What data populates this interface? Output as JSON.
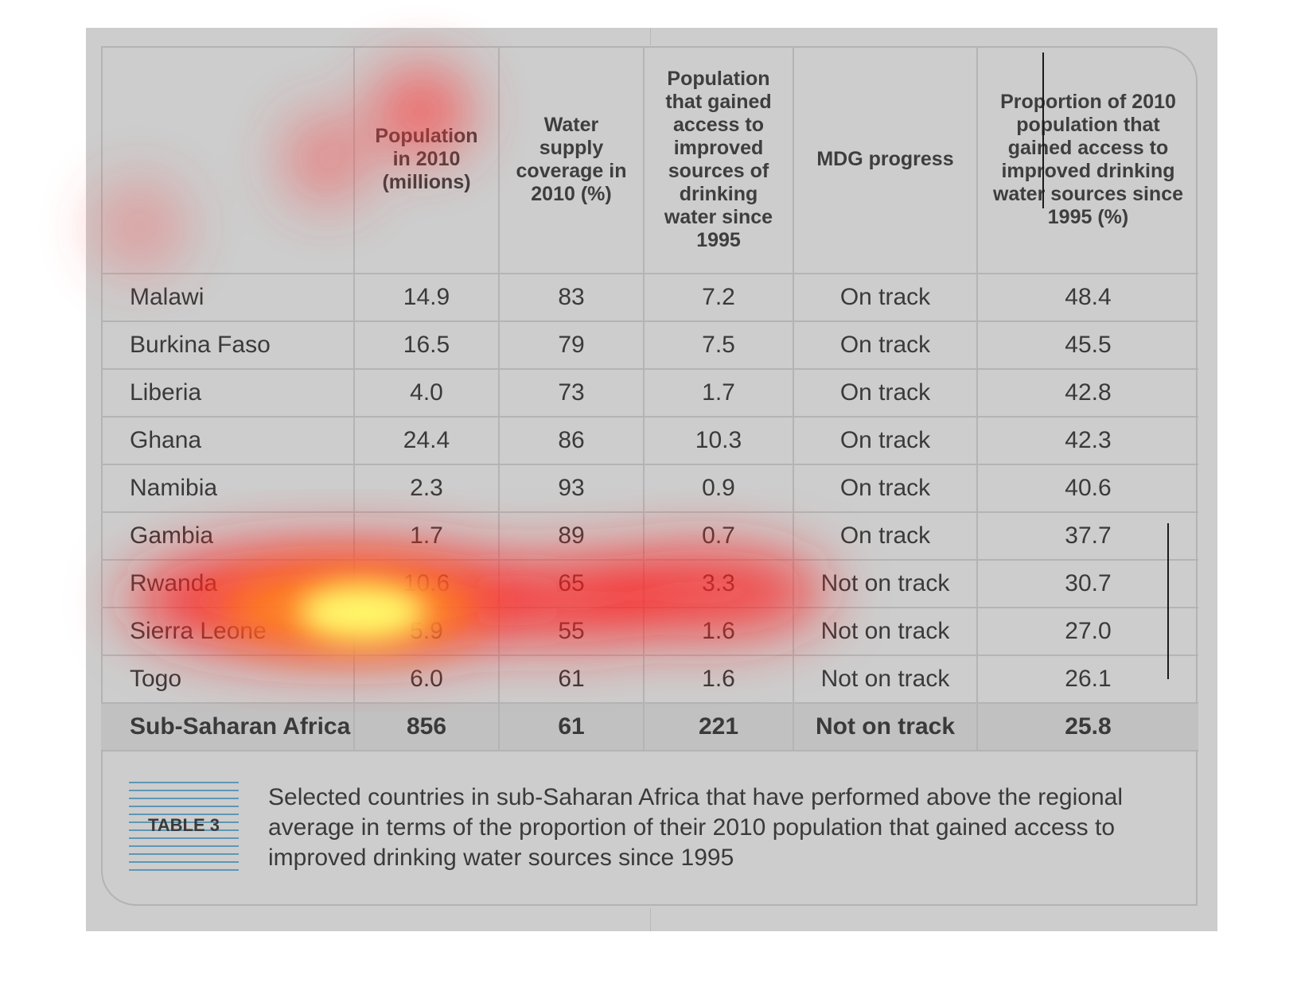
{
  "table": {
    "headers": [
      "",
      "Population in 2010 (millions)",
      "Water supply coverage in 2010 (%)",
      "Population that gained access to improved sources of drinking water since 1995",
      "MDG progress",
      "Proportion of 2010 population that gained access to improved drinking water sources since 1995 (%)"
    ],
    "rows": [
      [
        "Malawi",
        "14.9",
        "83",
        "7.2",
        "On track",
        "48.4"
      ],
      [
        "Burkina Faso",
        "16.5",
        "79",
        "7.5",
        "On track",
        "45.5"
      ],
      [
        "Liberia",
        "4.0",
        "73",
        "1.7",
        "On track",
        "42.8"
      ],
      [
        "Ghana",
        "24.4",
        "86",
        "10.3",
        "On track",
        "42.3"
      ],
      [
        "Namibia",
        "2.3",
        "93",
        "0.9",
        "On track",
        "40.6"
      ],
      [
        "Gambia",
        "1.7",
        "89",
        "0.7",
        "On track",
        "37.7"
      ],
      [
        "Rwanda",
        "10.6",
        "65",
        "3.3",
        "Not on track",
        "30.7"
      ],
      [
        "Sierra Leone",
        "5.9",
        "55",
        "1.6",
        "Not on track",
        "27.0"
      ],
      [
        "Togo",
        "6.0",
        "61",
        "1.6",
        "Not on track",
        "26.1"
      ]
    ],
    "total": [
      "Sub-Saharan Africa",
      "856",
      "61",
      "221",
      "Not on track",
      "25.8"
    ]
  },
  "caption": {
    "label": "TABLE 3",
    "text": "Selected countries in sub-Saharan Africa that have performed above the regional average in terms of the proportion of their 2010 population that gained access to improved drinking water sources since 1995"
  },
  "colors": {
    "panel": "#cdcdcd",
    "caption_lines": "#5e97b5",
    "heat_hot": "#fff86a",
    "heat_warm": "#ff3030"
  }
}
